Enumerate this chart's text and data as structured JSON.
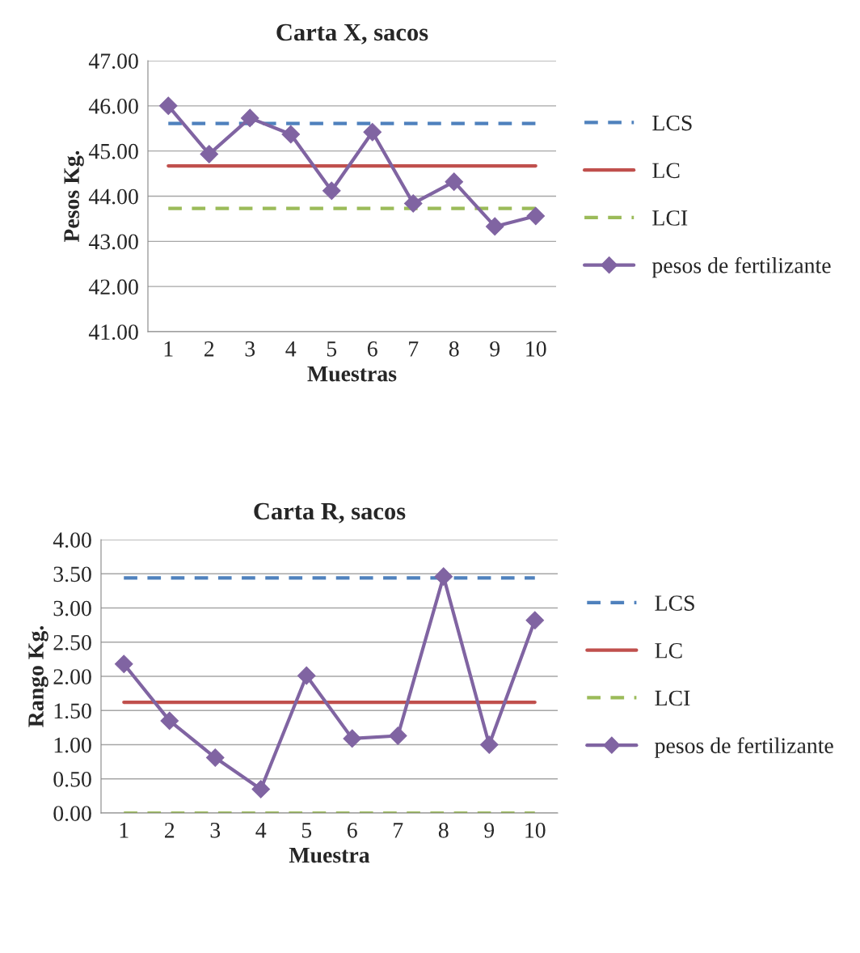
{
  "chart_data": [
    {
      "type": "line",
      "title": "Carta X, sacos",
      "xlabel": "Muestras",
      "ylabel": "Pesos Kg.",
      "categories": [
        "1",
        "2",
        "3",
        "4",
        "5",
        "6",
        "7",
        "8",
        "9",
        "10"
      ],
      "series": [
        {
          "name": "LCS",
          "color": "#4f81bd",
          "line_style": "dashed",
          "marker": "none",
          "values": [
            45.61,
            45.61,
            45.61,
            45.61,
            45.61,
            45.61,
            45.61,
            45.61,
            45.61,
            45.61
          ]
        },
        {
          "name": "LC",
          "color": "#c0504d",
          "line_style": "solid",
          "marker": "none",
          "values": [
            44.67,
            44.67,
            44.67,
            44.67,
            44.67,
            44.67,
            44.67,
            44.67,
            44.67,
            44.67
          ]
        },
        {
          "name": "LCI",
          "color": "#9bbb59",
          "line_style": "dashed",
          "marker": "none",
          "values": [
            43.73,
            43.73,
            43.73,
            43.73,
            43.73,
            43.73,
            43.73,
            43.73,
            43.73,
            43.73
          ]
        },
        {
          "name": "pesos de fertilizante",
          "color": "#8064a2",
          "line_style": "solid",
          "marker": "diamond",
          "values": [
            46.0,
            44.93,
            45.73,
            45.37,
            44.12,
            45.42,
            43.84,
            44.32,
            43.33,
            43.56
          ]
        }
      ],
      "ylim": [
        41,
        47
      ],
      "yticks": [
        {
          "value": 41,
          "label": "41.00"
        },
        {
          "value": 42,
          "label": "42.00"
        },
        {
          "value": 43,
          "label": "43.00"
        },
        {
          "value": 44,
          "label": "44.00"
        },
        {
          "value": 45,
          "label": "45.00"
        },
        {
          "value": 46,
          "label": "46.00"
        },
        {
          "value": 47,
          "label": "47.00"
        }
      ],
      "grid": "y",
      "legend": "right"
    },
    {
      "type": "line",
      "title": "Carta R, sacos",
      "xlabel": "Muestra",
      "ylabel": "Rango Kg.",
      "categories": [
        "1",
        "2",
        "3",
        "4",
        "5",
        "6",
        "7",
        "8",
        "9",
        "10"
      ],
      "series": [
        {
          "name": "LCS",
          "color": "#4f81bd",
          "line_style": "dashed",
          "marker": "none",
          "values": [
            3.44,
            3.44,
            3.44,
            3.44,
            3.44,
            3.44,
            3.44,
            3.44,
            3.44,
            3.44
          ]
        },
        {
          "name": "LC",
          "color": "#c0504d",
          "line_style": "solid",
          "marker": "none",
          "values": [
            1.62,
            1.62,
            1.62,
            1.62,
            1.62,
            1.62,
            1.62,
            1.62,
            1.62,
            1.62
          ]
        },
        {
          "name": "LCI",
          "color": "#9bbb59",
          "line_style": "dashed",
          "marker": "none",
          "values": [
            0,
            0,
            0,
            0,
            0,
            0,
            0,
            0,
            0,
            0
          ]
        },
        {
          "name": "pesos de fertilizante",
          "color": "#8064a2",
          "line_style": "solid",
          "marker": "diamond",
          "values": [
            2.18,
            1.35,
            0.81,
            0.35,
            2.01,
            1.09,
            1.13,
            3.46,
            1.0,
            2.82
          ]
        }
      ],
      "ylim": [
        0,
        4
      ],
      "yticks": [
        {
          "value": 0,
          "label": "0.00"
        },
        {
          "value": 0.5,
          "label": "0.50"
        },
        {
          "value": 1,
          "label": "1.00"
        },
        {
          "value": 1.5,
          "label": "1.50"
        },
        {
          "value": 2,
          "label": "2.00"
        },
        {
          "value": 2.5,
          "label": "2.50"
        },
        {
          "value": 3,
          "label": "3.00"
        },
        {
          "value": 3.5,
          "label": "3.50"
        },
        {
          "value": 4,
          "label": "4.00"
        }
      ],
      "grid": "y",
      "legend": "right"
    }
  ]
}
